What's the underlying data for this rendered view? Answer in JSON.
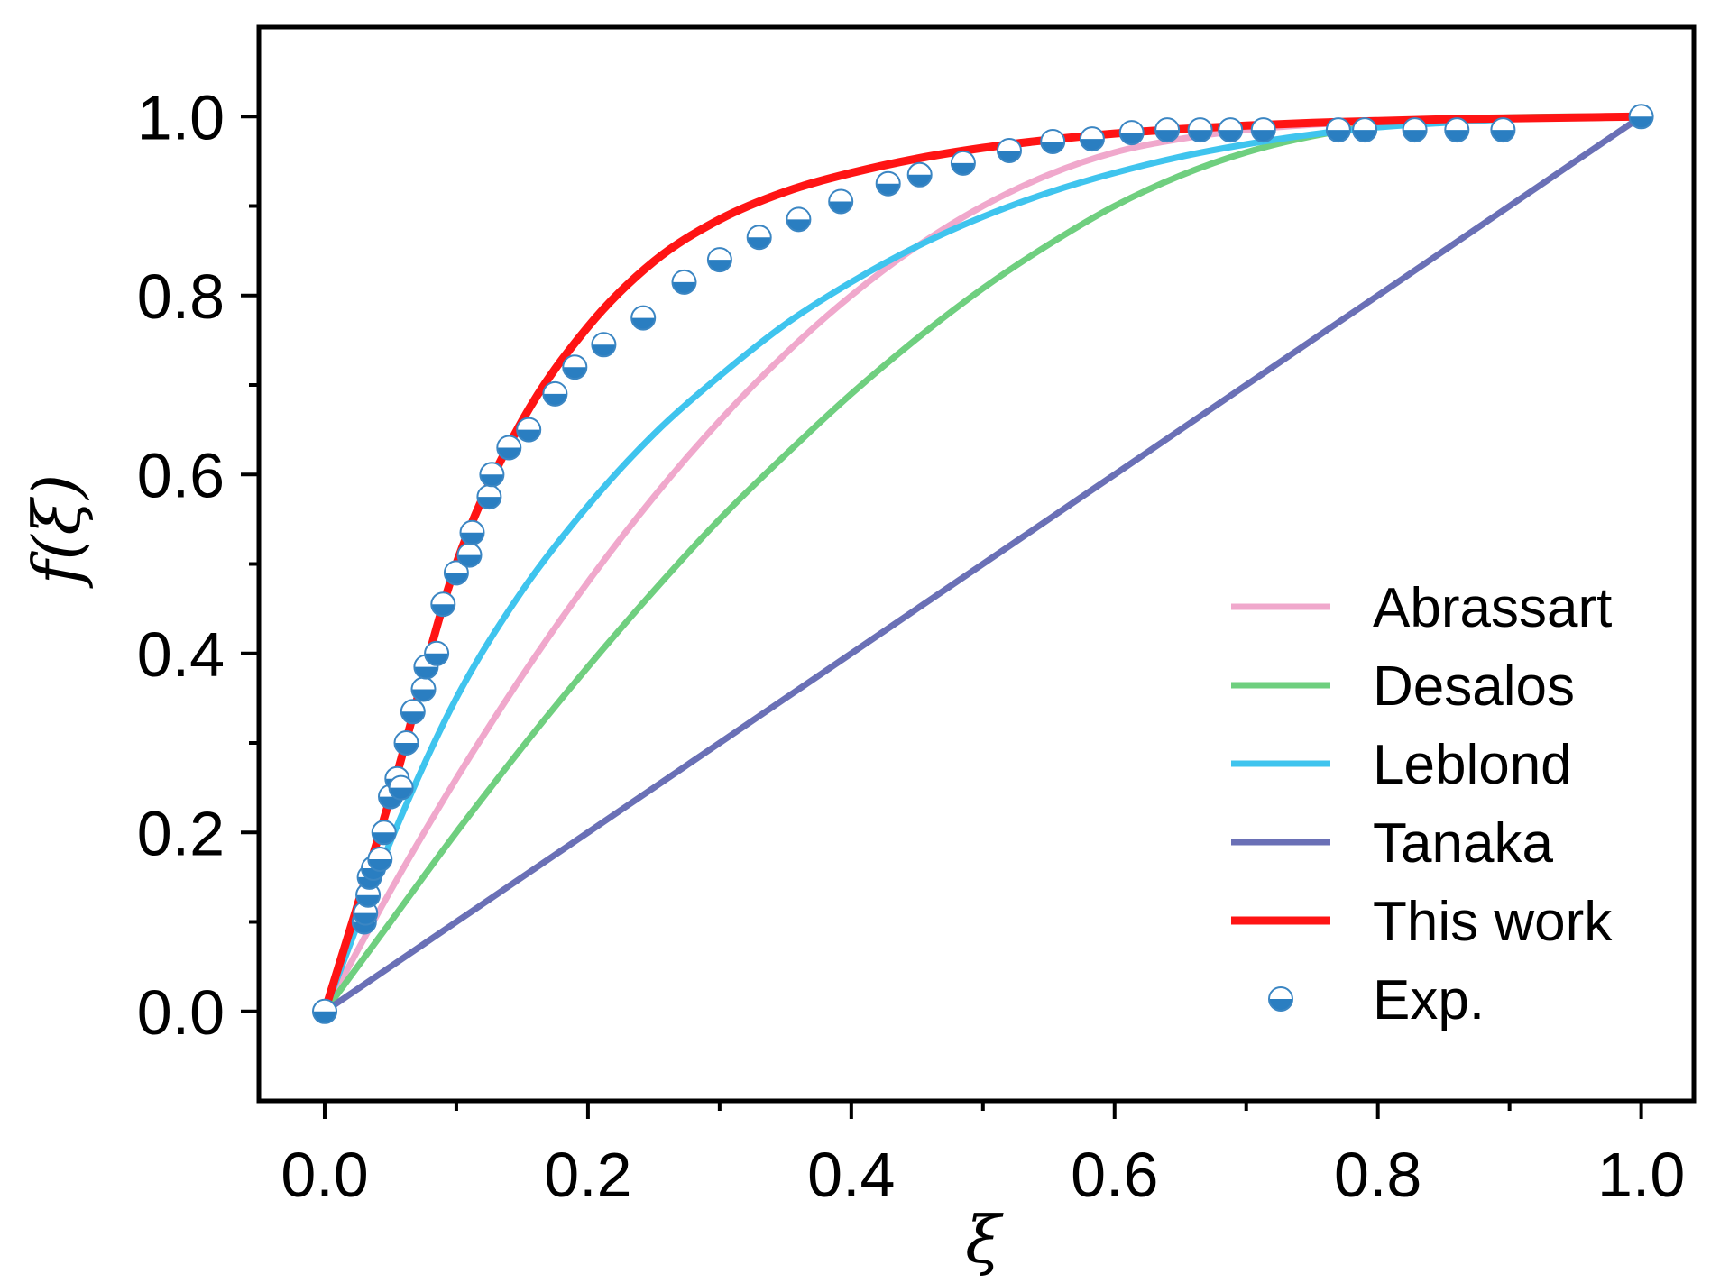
{
  "chart_data": {
    "type": "line",
    "title": "",
    "xlabel": "ξ",
    "ylabel": "f(ξ)",
    "xlim": [
      -0.05,
      1.04
    ],
    "ylim": [
      -0.1,
      1.1
    ],
    "x_ticks": [
      0.0,
      0.2,
      0.4,
      0.6,
      0.8,
      1.0
    ],
    "x_tick_labels": [
      "0.0",
      "0.2",
      "0.4",
      "0.6",
      "0.8",
      "1.0"
    ],
    "x_minor_ticks": [
      0.1,
      0.3,
      0.5,
      0.7,
      0.9
    ],
    "y_ticks": [
      0.0,
      0.2,
      0.4,
      0.6,
      0.8,
      1.0
    ],
    "y_tick_labels": [
      "0.0",
      "0.2",
      "0.4",
      "0.6",
      "0.8",
      "1.0"
    ],
    "y_minor_ticks": [
      0.1,
      0.3,
      0.5,
      0.7,
      0.9
    ],
    "grid": false,
    "legend_position": "bottom-right",
    "x": [
      0.0,
      0.05,
      0.1,
      0.15,
      0.2,
      0.25,
      0.3,
      0.35,
      0.4,
      0.45,
      0.5,
      0.55,
      0.6,
      0.65,
      0.7,
      0.75,
      0.8,
      0.85,
      0.9,
      0.95,
      1.0
    ],
    "series": [
      {
        "name": "Abrassart",
        "color": "#f0a8cc",
        "values": [
          0.0,
          0.135,
          0.26,
          0.375,
          0.48,
          0.575,
          0.66,
          0.735,
          0.8,
          0.855,
          0.9,
          0.935,
          0.96,
          0.975,
          0.985,
          0.991,
          0.995,
          0.997,
          0.998,
          0.999,
          1.0
        ]
      },
      {
        "name": "Desalos",
        "color": "#6fcf7f",
        "values": [
          0.0,
          0.1,
          0.2,
          0.295,
          0.385,
          0.47,
          0.55,
          0.622,
          0.69,
          0.752,
          0.808,
          0.857,
          0.9,
          0.934,
          0.96,
          0.978,
          0.99,
          0.996,
          0.999,
          1.0,
          1.0
        ]
      },
      {
        "name": "Leblond",
        "color": "#3fc4ee",
        "values": [
          0.0,
          0.19,
          0.35,
          0.47,
          0.565,
          0.645,
          0.71,
          0.768,
          0.815,
          0.855,
          0.888,
          0.915,
          0.937,
          0.955,
          0.969,
          0.98,
          0.988,
          0.993,
          0.997,
          0.999,
          1.0
        ]
      },
      {
        "name": "Tanaka",
        "color": "#6a70b6",
        "values": [
          0.0,
          0.05,
          0.1,
          0.15,
          0.2,
          0.25,
          0.3,
          0.35,
          0.4,
          0.45,
          0.5,
          0.55,
          0.6,
          0.65,
          0.7,
          0.75,
          0.8,
          0.85,
          0.9,
          0.95,
          1.0
        ]
      },
      {
        "name": "This work",
        "color": "#ff1414",
        "values": [
          0.0,
          0.24,
          0.5,
          0.66,
          0.765,
          0.838,
          0.885,
          0.916,
          0.937,
          0.953,
          0.965,
          0.974,
          0.981,
          0.986,
          0.99,
          0.993,
          0.995,
          0.997,
          0.998,
          0.999,
          1.0
        ]
      }
    ],
    "scatter": {
      "name": "Exp.",
      "fill_color": "#2a7ec1",
      "x": [
        0.0,
        0.03,
        0.031,
        0.033,
        0.034,
        0.037,
        0.042,
        0.045,
        0.05,
        0.055,
        0.058,
        0.062,
        0.067,
        0.075,
        0.077,
        0.085,
        0.09,
        0.1,
        0.11,
        0.112,
        0.125,
        0.127,
        0.14,
        0.155,
        0.175,
        0.19,
        0.212,
        0.242,
        0.273,
        0.3,
        0.33,
        0.36,
        0.392,
        0.428,
        0.452,
        0.485,
        0.52,
        0.553,
        0.583,
        0.613,
        0.64,
        0.665,
        0.688,
        0.713,
        0.77,
        0.79,
        0.828,
        0.86,
        0.895,
        1.0
      ],
      "y": [
        0.0,
        0.1,
        0.11,
        0.13,
        0.15,
        0.16,
        0.17,
        0.2,
        0.24,
        0.26,
        0.25,
        0.3,
        0.335,
        0.36,
        0.385,
        0.4,
        0.455,
        0.49,
        0.51,
        0.535,
        0.575,
        0.6,
        0.63,
        0.65,
        0.69,
        0.72,
        0.745,
        0.775,
        0.815,
        0.84,
        0.865,
        0.885,
        0.905,
        0.925,
        0.935,
        0.948,
        0.962,
        0.972,
        0.975,
        0.982,
        0.985,
        0.985,
        0.985,
        0.985,
        0.985,
        0.985,
        0.985,
        0.985,
        0.985,
        1.0
      ]
    },
    "legend": [
      "Abrassart",
      "Desalos",
      "Leblond",
      "Tanaka",
      "This work",
      "Exp."
    ]
  }
}
